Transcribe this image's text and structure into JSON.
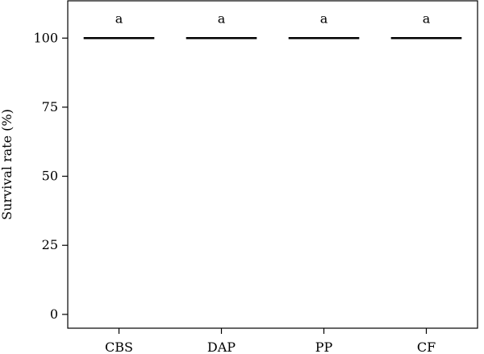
{
  "chart_data": {
    "type": "bar",
    "categories": [
      "CBS",
      "DAP",
      "PP",
      "CF"
    ],
    "values": [
      100,
      100,
      100,
      100
    ],
    "annotations": [
      "a",
      "a",
      "a",
      "a"
    ],
    "title": "",
    "xlabel": "",
    "ylabel": "Survival rate (%)",
    "ylim": [
      -5,
      113.5
    ],
    "yticks": [
      0,
      25,
      50,
      75,
      100
    ],
    "grid": false,
    "legend": "none",
    "mark_color": "#000000"
  }
}
